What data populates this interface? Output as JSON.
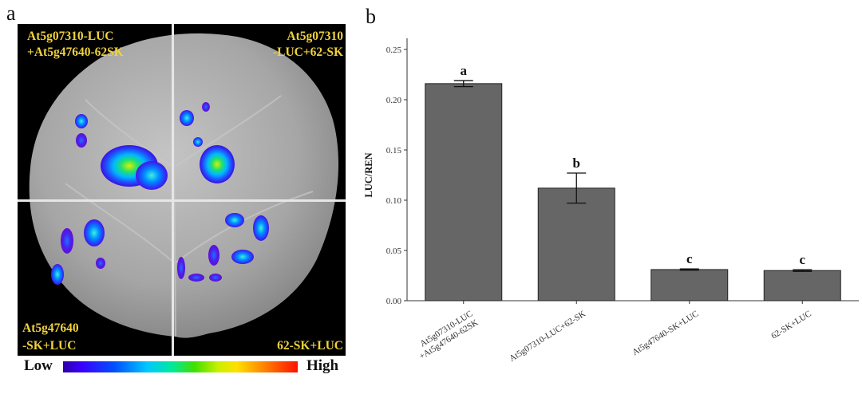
{
  "panel_a": {
    "letter": "a",
    "quadrants": {
      "top_left": [
        "At5g07310-LUC",
        "+At5g47640-62SK"
      ],
      "top_right": [
        "At5g07310",
        "-LUC+62-SK"
      ],
      "bottom_left": [
        "At5g47640",
        "-SK+LUC"
      ],
      "bottom_right": [
        "62-SK+LUC"
      ]
    },
    "scale": {
      "low": "Low",
      "high": "High"
    },
    "colors": {
      "label": "#f0d23c",
      "background": "#000000",
      "leaf": "#a8a8a8"
    }
  },
  "chart_data": {
    "letter": "b",
    "type": "bar",
    "ylabel": "LUC/REN",
    "xlabel": "",
    "ylim": [
      0,
      0.25
    ],
    "yticks": [
      0.0,
      0.05,
      0.1,
      0.15,
      0.2,
      0.25
    ],
    "ytick_labels": [
      "0.00",
      "0.05",
      "0.10",
      "0.15",
      "0.20",
      "0.25"
    ],
    "categories": [
      [
        "At5g07310-LUC",
        "+At5g47640-62SK"
      ],
      [
        "At5g07310-LUC+62-SK"
      ],
      [
        "At5g47640-SK+LUC"
      ],
      [
        "62-SK+LUC"
      ]
    ],
    "values": [
      0.216,
      0.112,
      0.031,
      0.03
    ],
    "errors": [
      0.003,
      0.015,
      0.0006,
      0.0008
    ],
    "significance": [
      "a",
      "b",
      "c",
      "c"
    ],
    "bar_color": "#666666",
    "grid": false
  }
}
